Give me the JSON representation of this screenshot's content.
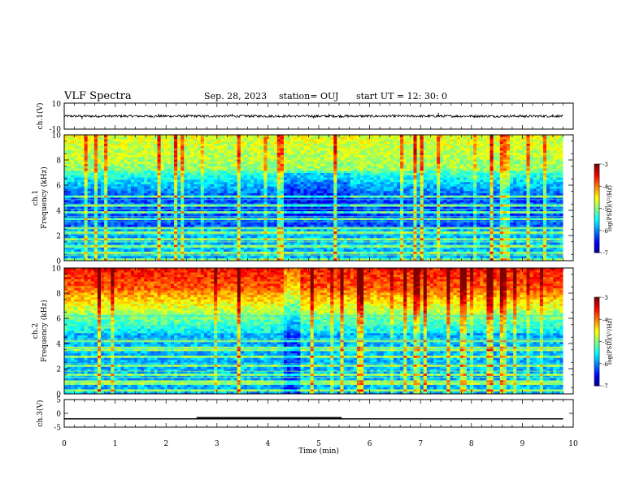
{
  "header": {
    "title": "VLF Spectra",
    "date": "Sep. 28, 2023",
    "station": "station= OUJ",
    "start": "start  UT  =   12: 30: 0"
  },
  "chart_data": [
    {
      "type": "line",
      "panel": "waveform-ch1",
      "ylabel": "ch.1(V)",
      "ylim": [
        -10,
        10
      ],
      "y_ticks": [
        "10",
        "-10"
      ],
      "x": [
        0,
        9.8
      ],
      "band_center": 0,
      "band_halfwidth": 0.9,
      "spikes": [
        {
          "t": 0.35,
          "v": -2.3
        },
        {
          "t": 1.85,
          "v": 1.6
        },
        {
          "t": 2.75,
          "v": -1.6
        },
        {
          "t": 3.3,
          "v": 1.9
        },
        {
          "t": 4.9,
          "v": -1.8
        },
        {
          "t": 5.2,
          "v": 1.7
        },
        {
          "t": 7.35,
          "v": 2.6
        },
        {
          "t": 9.05,
          "v": -1.5
        },
        {
          "t": 9.6,
          "v": 1.4
        }
      ]
    },
    {
      "type": "heatmap",
      "panel": "spectrogram-ch1",
      "ylabel": "ch.1\nFrequency (kHz)",
      "ylim": [
        0,
        10
      ],
      "y_ticks": [
        "0",
        "2",
        "4",
        "6",
        "8",
        "10"
      ],
      "xlim": [
        0,
        9.8
      ],
      "colorbar": {
        "label": "log(PSD)(V²/Hz)",
        "range": [
          -7,
          -3
        ],
        "ticks": [
          "-3",
          "-4",
          "-5",
          "-6",
          "-7"
        ]
      }
    },
    {
      "type": "heatmap",
      "panel": "spectrogram-ch2",
      "ylabel": "ch.2\nFrequency (kHz)",
      "ylim": [
        0,
        10
      ],
      "y_ticks": [
        "0",
        "2",
        "4",
        "6",
        "8",
        "10"
      ],
      "xlim": [
        0,
        9.8
      ],
      "colorbar": {
        "label": "log(PSD)(V²/Hz)",
        "range": [
          -7,
          -3
        ],
        "ticks": [
          "-3",
          "-4",
          "-5",
          "-6",
          "-7"
        ]
      }
    },
    {
      "type": "line",
      "panel": "waveform-ch3",
      "ylabel": "ch.3(V)",
      "ylim": [
        -5,
        5
      ],
      "y_ticks": [
        "5",
        "0",
        "-5"
      ],
      "level": -2,
      "x": [
        0,
        9.8
      ],
      "thick_segment": [
        2.6,
        5.45
      ]
    }
  ],
  "xaxis": {
    "label": "Time (min)",
    "range": [
      0,
      10
    ],
    "ticks": [
      "0",
      "1",
      "2",
      "3",
      "4",
      "5",
      "6",
      "7",
      "8",
      "9",
      "10"
    ]
  },
  "colors": {
    "jet": [
      "#00008f",
      "#0000ff",
      "#0080ff",
      "#00ffff",
      "#80ff80",
      "#ffff00",
      "#ff8000",
      "#ff0000",
      "#800000"
    ],
    "line": "#000000"
  }
}
